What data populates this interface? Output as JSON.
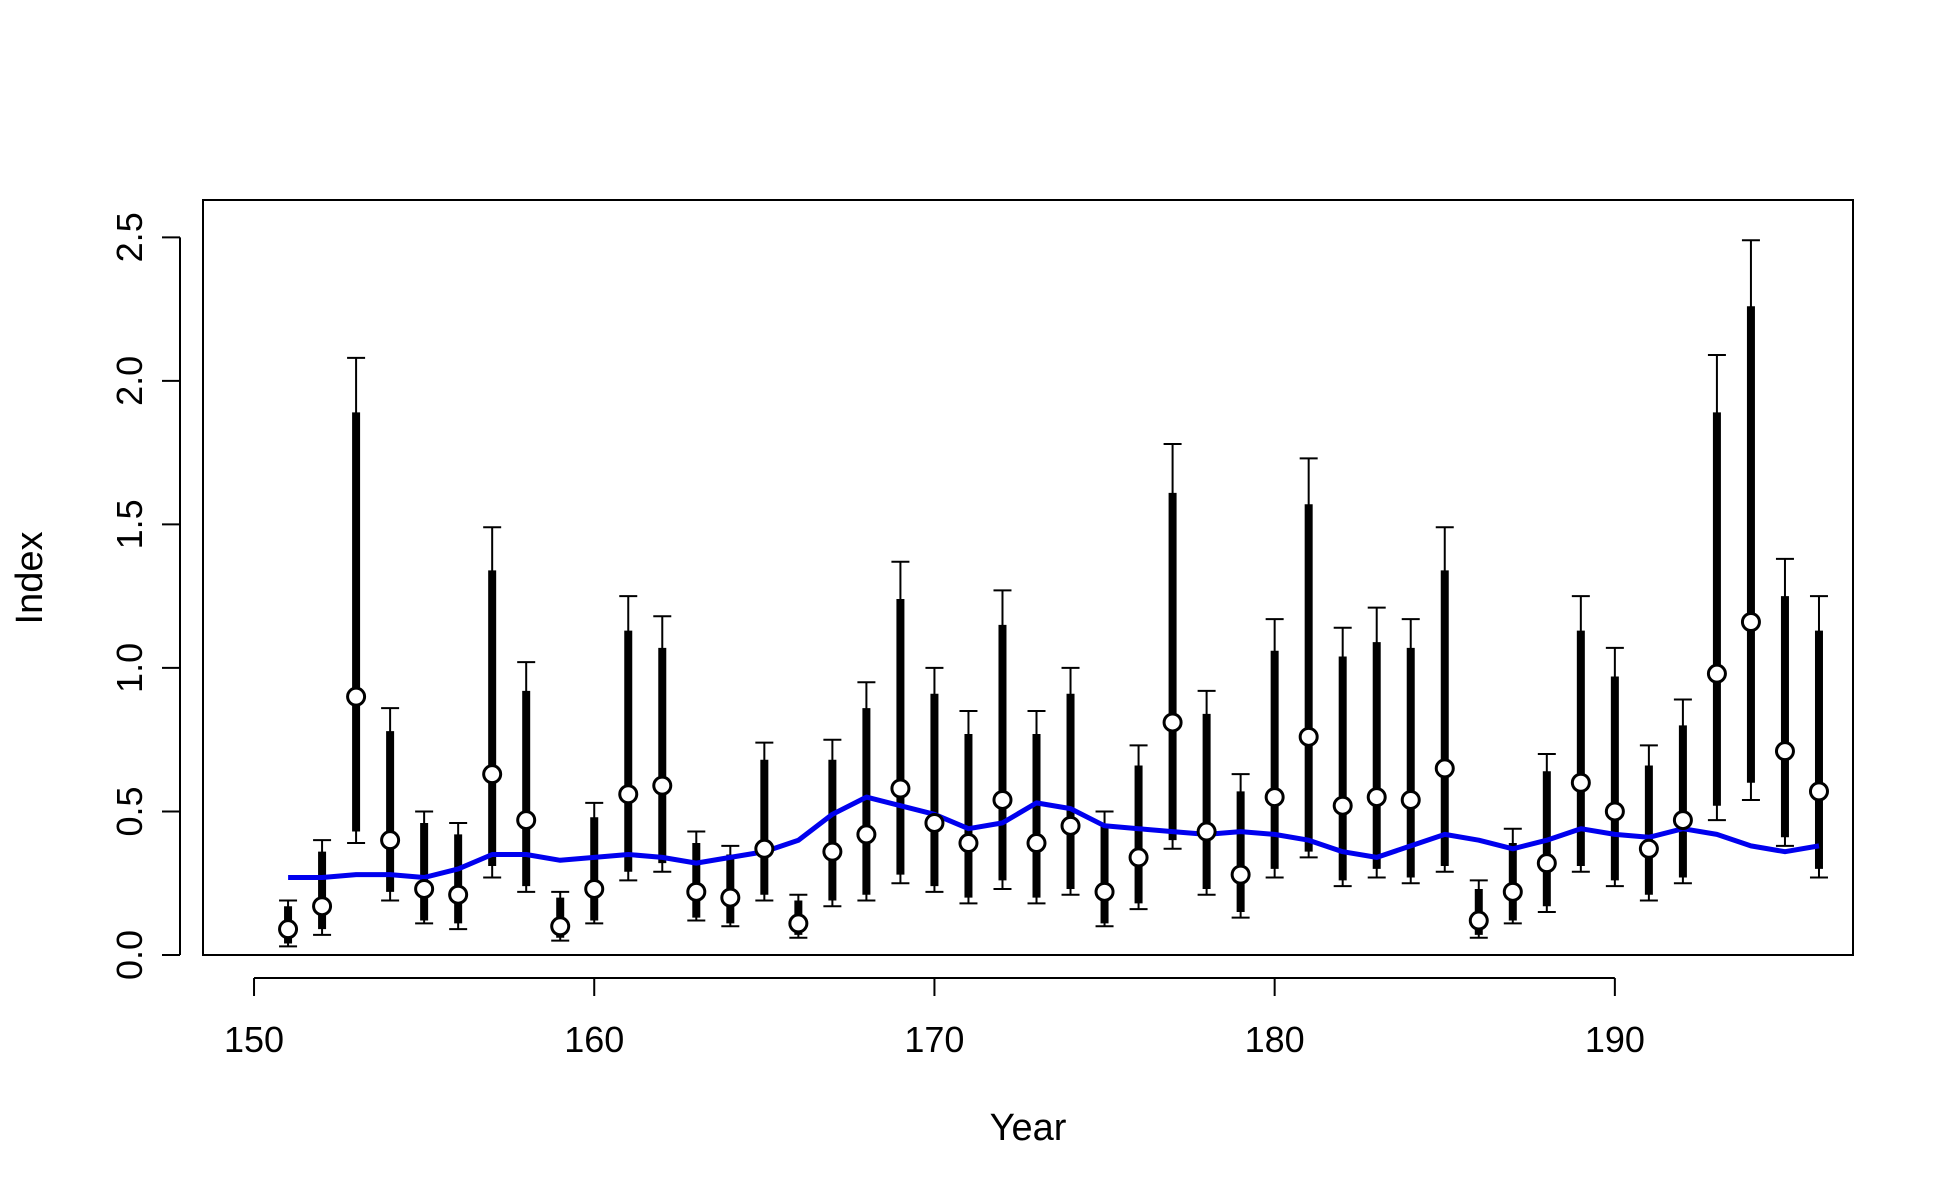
{
  "chart_data": {
    "type": "line",
    "title": "",
    "xlabel": "Year",
    "ylabel": "Index",
    "xlim": [
      148.5,
      197
    ],
    "ylim": [
      0,
      2.63
    ],
    "grid": false,
    "legend": null,
    "x_ticks": [
      150,
      160,
      170,
      180,
      190
    ],
    "y_ticks": [
      0.0,
      0.5,
      1.0,
      1.5,
      2.0,
      2.5
    ],
    "x_tick_labels": [
      "150",
      "160",
      "170",
      "180",
      "190"
    ],
    "y_tick_labels": [
      "0.0",
      "0.5",
      "1.0",
      "1.5",
      "2.0",
      "2.5"
    ],
    "colors": {
      "points": "#000000",
      "point_fill": "#ffffff",
      "intervals": "#000000",
      "fit_line": "#0000ee"
    },
    "series": [
      {
        "kind": "point_with_interval",
        "x": [
          151,
          152,
          153,
          154,
          155,
          156,
          157,
          158,
          159,
          160,
          161,
          162,
          163,
          164,
          165,
          166,
          167,
          168,
          169,
          170,
          171,
          172,
          173,
          174,
          175,
          176,
          177,
          178,
          179,
          180,
          181,
          182,
          183,
          184,
          185,
          186,
          187,
          188,
          189,
          190,
          191,
          192,
          193,
          194,
          195,
          196
        ],
        "values": [
          0.09,
          0.17,
          0.9,
          0.4,
          0.23,
          0.21,
          0.63,
          0.47,
          0.1,
          0.23,
          0.56,
          0.59,
          0.22,
          0.2,
          0.37,
          0.11,
          0.36,
          0.42,
          0.58,
          0.46,
          0.39,
          0.54,
          0.39,
          0.45,
          0.22,
          0.34,
          0.81,
          0.43,
          0.28,
          0.55,
          0.76,
          0.52,
          0.55,
          0.54,
          0.65,
          0.12,
          0.22,
          0.32,
          0.6,
          0.5,
          0.37,
          0.47,
          0.98,
          1.16,
          0.71,
          0.57
        ],
        "inner_low": [
          0.04,
          0.09,
          0.43,
          0.22,
          0.12,
          0.11,
          0.31,
          0.24,
          0.06,
          0.12,
          0.29,
          0.32,
          0.13,
          0.11,
          0.21,
          0.07,
          0.19,
          0.21,
          0.28,
          0.24,
          0.2,
          0.26,
          0.2,
          0.23,
          0.11,
          0.18,
          0.4,
          0.23,
          0.15,
          0.3,
          0.36,
          0.26,
          0.3,
          0.27,
          0.31,
          0.07,
          0.12,
          0.17,
          0.31,
          0.26,
          0.21,
          0.27,
          0.52,
          0.6,
          0.41,
          0.3
        ],
        "inner_high": [
          0.17,
          0.36,
          1.89,
          0.78,
          0.46,
          0.42,
          1.34,
          0.92,
          0.2,
          0.48,
          1.13,
          1.07,
          0.39,
          0.35,
          0.68,
          0.19,
          0.68,
          0.86,
          1.24,
          0.91,
          0.77,
          1.15,
          0.77,
          0.91,
          0.45,
          0.66,
          1.61,
          0.84,
          0.57,
          1.06,
          1.57,
          1.04,
          1.09,
          1.07,
          1.34,
          0.23,
          0.39,
          0.64,
          1.13,
          0.97,
          0.66,
          0.8,
          1.89,
          2.26,
          1.25,
          1.13
        ],
        "outer_low": [
          0.03,
          0.07,
          0.39,
          0.19,
          0.11,
          0.09,
          0.27,
          0.22,
          0.05,
          0.11,
          0.26,
          0.29,
          0.12,
          0.1,
          0.19,
          0.06,
          0.17,
          0.19,
          0.25,
          0.22,
          0.18,
          0.23,
          0.18,
          0.21,
          0.1,
          0.16,
          0.37,
          0.21,
          0.13,
          0.27,
          0.34,
          0.24,
          0.27,
          0.25,
          0.29,
          0.06,
          0.11,
          0.15,
          0.29,
          0.24,
          0.19,
          0.25,
          0.47,
          0.54,
          0.38,
          0.27
        ],
        "outer_high": [
          0.19,
          0.4,
          2.08,
          0.86,
          0.5,
          0.46,
          1.49,
          1.02,
          0.22,
          0.53,
          1.25,
          1.18,
          0.43,
          0.38,
          0.74,
          0.21,
          0.75,
          0.95,
          1.37,
          1.0,
          0.85,
          1.27,
          0.85,
          1.0,
          0.5,
          0.73,
          1.78,
          0.92,
          0.63,
          1.17,
          1.73,
          1.14,
          1.21,
          1.17,
          1.49,
          0.26,
          0.44,
          0.7,
          1.25,
          1.07,
          0.73,
          0.89,
          2.09,
          2.49,
          1.38,
          1.25
        ]
      },
      {
        "kind": "line",
        "x": [
          151,
          152,
          153,
          154,
          155,
          156,
          157,
          158,
          159,
          160,
          161,
          162,
          163,
          164,
          165,
          166,
          167,
          168,
          169,
          170,
          171,
          172,
          173,
          174,
          175,
          176,
          177,
          178,
          179,
          180,
          181,
          182,
          183,
          184,
          185,
          186,
          187,
          188,
          189,
          190,
          191,
          192,
          193,
          194,
          195,
          196
        ],
        "values": [
          0.27,
          0.27,
          0.28,
          0.28,
          0.27,
          0.3,
          0.35,
          0.35,
          0.33,
          0.34,
          0.35,
          0.34,
          0.32,
          0.34,
          0.36,
          0.4,
          0.49,
          0.55,
          0.52,
          0.49,
          0.44,
          0.46,
          0.53,
          0.51,
          0.45,
          0.44,
          0.43,
          0.42,
          0.43,
          0.42,
          0.4,
          0.36,
          0.34,
          0.38,
          0.42,
          0.4,
          0.37,
          0.4,
          0.44,
          0.42,
          0.41,
          0.44,
          0.42,
          0.38,
          0.36,
          0.38
        ]
      }
    ]
  }
}
